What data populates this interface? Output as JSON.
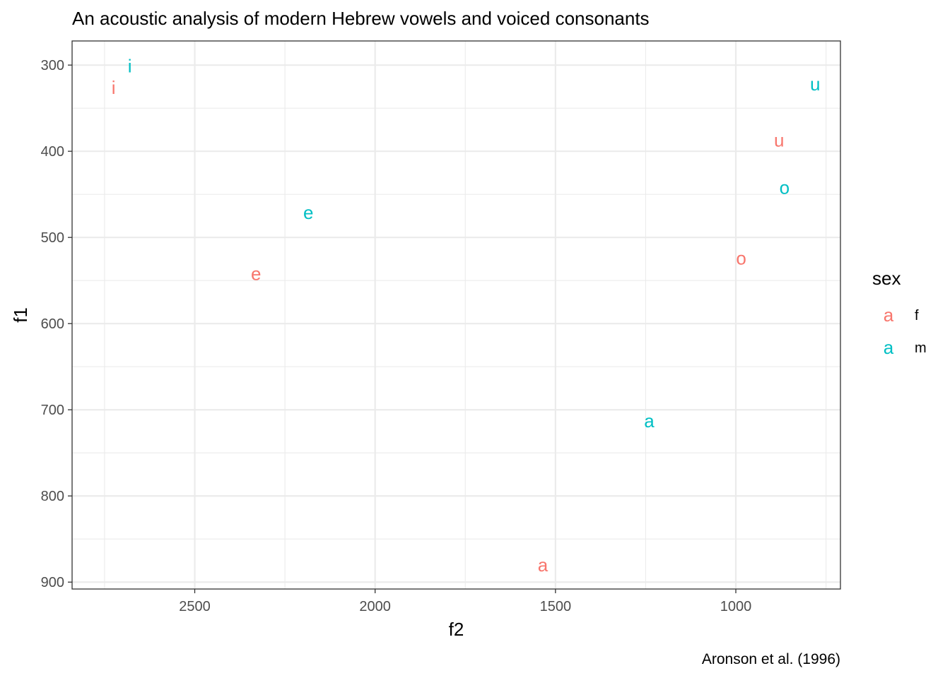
{
  "chart_data": {
    "type": "scatter",
    "title": "An acoustic analysis of modern Hebrew vowels and voiced consonants",
    "caption": "Aronson et al. (1996)",
    "xlabel": "f2",
    "ylabel": "f1",
    "x_reversed": true,
    "y_reversed": true,
    "xlim": [
      2840,
      710
    ],
    "ylim": [
      272,
      908
    ],
    "x_ticks": [
      2500,
      2000,
      1500,
      1000
    ],
    "y_ticks": [
      300,
      400,
      500,
      600,
      700,
      800,
      900
    ],
    "grid": true,
    "legend": {
      "title": "sex",
      "position": "right",
      "key_glyph": "a",
      "entries": [
        {
          "name": "f",
          "color": "#F8766D"
        },
        {
          "name": "m",
          "color": "#00BFC4"
        }
      ]
    },
    "points": [
      {
        "label": "i",
        "sex": "f",
        "f2": 2725,
        "f1": 326
      },
      {
        "label": "i",
        "sex": "m",
        "f2": 2680,
        "f1": 301
      },
      {
        "label": "e",
        "sex": "f",
        "f2": 2330,
        "f1": 542
      },
      {
        "label": "e",
        "sex": "m",
        "f2": 2185,
        "f1": 471
      },
      {
        "label": "a",
        "sex": "f",
        "f2": 1535,
        "f1": 880
      },
      {
        "label": "a",
        "sex": "m",
        "f2": 1240,
        "f1": 713
      },
      {
        "label": "o",
        "sex": "f",
        "f2": 985,
        "f1": 524
      },
      {
        "label": "o",
        "sex": "m",
        "f2": 865,
        "f1": 442
      },
      {
        "label": "u",
        "sex": "f",
        "f2": 880,
        "f1": 387
      },
      {
        "label": "u",
        "sex": "m",
        "f2": 780,
        "f1": 322
      }
    ]
  }
}
